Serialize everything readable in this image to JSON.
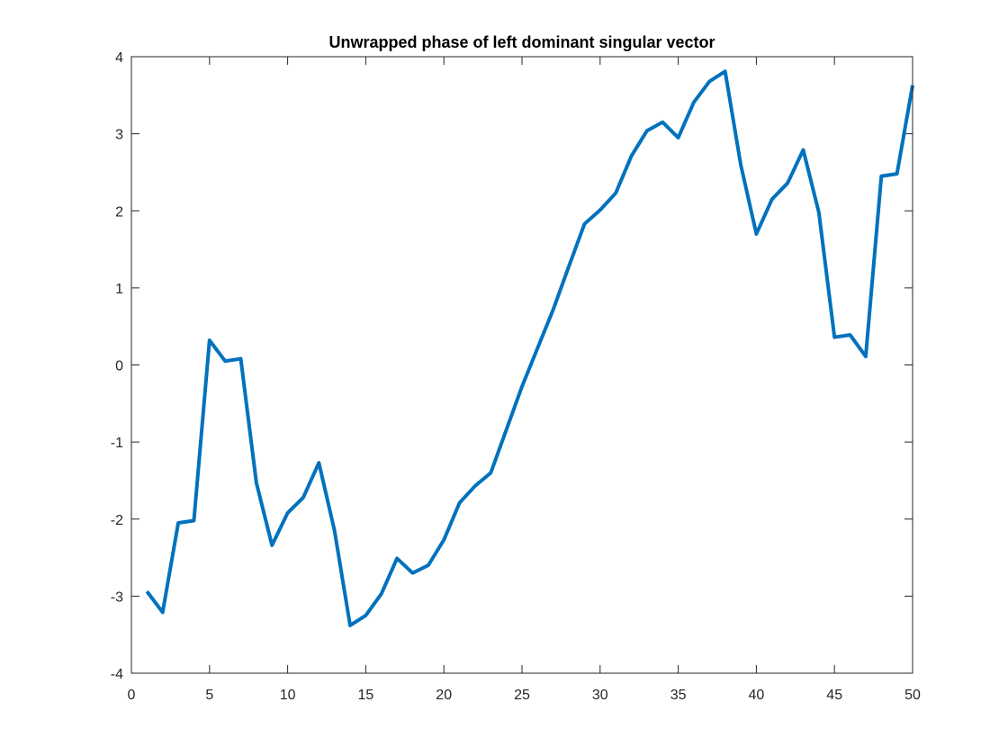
{
  "chart_data": {
    "type": "line",
    "title": "Unwrapped phase of left dominant singular vector",
    "xlabel": "",
    "ylabel": "",
    "xlim": [
      0,
      50
    ],
    "ylim": [
      -4,
      4
    ],
    "xticks": [
      0,
      5,
      10,
      15,
      20,
      25,
      30,
      35,
      40,
      45,
      50
    ],
    "yticks": [
      -4,
      -3,
      -2,
      -1,
      0,
      1,
      2,
      3,
      4
    ],
    "grid": false,
    "line_color": "#0072BD",
    "series": [
      {
        "x": [
          1,
          2,
          3,
          4,
          5,
          6,
          7,
          8,
          9,
          10,
          11,
          12,
          13,
          14,
          15,
          16,
          17,
          18,
          19,
          20,
          21,
          22,
          23,
          24,
          25,
          26,
          27,
          28,
          29,
          30,
          31,
          32,
          33,
          34,
          35,
          36,
          37,
          38,
          39,
          40,
          41,
          42,
          43,
          44,
          45,
          46,
          47,
          48,
          49,
          50
        ],
        "values": [
          -2.94,
          -3.21,
          -2.05,
          -2.02,
          0.32,
          0.05,
          0.08,
          -1.53,
          -2.34,
          -1.92,
          -1.72,
          -1.27,
          -2.15,
          -3.38,
          -3.25,
          -2.97,
          -2.51,
          -2.7,
          -2.6,
          -2.27,
          -1.79,
          -1.57,
          -1.4,
          -0.84,
          -0.28,
          0.22,
          0.72,
          1.28,
          1.83,
          2.01,
          2.23,
          2.71,
          3.04,
          3.15,
          2.95,
          3.41,
          3.68,
          3.81,
          2.6,
          1.7,
          2.15,
          2.36,
          2.79,
          1.98,
          0.36,
          0.39,
          0.11,
          2.45,
          2.48,
          3.63
        ]
      }
    ]
  }
}
